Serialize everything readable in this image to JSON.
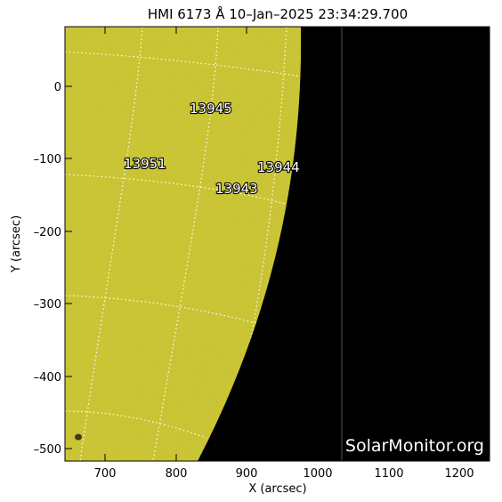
{
  "title": "HMI 6173 Å 10–Jan–2025 23:34:29.700",
  "x_axis": {
    "label": "X (arcsec)",
    "ticks": [
      "700",
      "800",
      "900",
      "1000",
      "1100",
      "1200"
    ]
  },
  "y_axis": {
    "label": "Y (arcsec)",
    "ticks": [
      "0",
      "–100",
      "–200",
      "–300",
      "–400",
      "–500"
    ]
  },
  "active_regions": [
    {
      "id": "13945"
    },
    {
      "id": "13951"
    },
    {
      "id": "13944"
    },
    {
      "id": "13943"
    }
  ],
  "watermark": "SolarMonitor.org",
  "colors": {
    "disk": "#c8c331",
    "space": "#000000",
    "grid": "#ffffff",
    "label_text": "#ffffff"
  }
}
